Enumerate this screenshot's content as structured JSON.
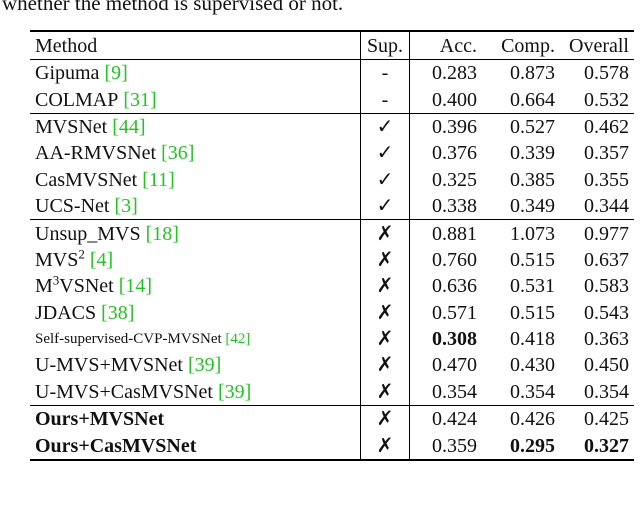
{
  "caption": "whether the method is supervised or not.",
  "table": {
    "header": {
      "method": "Method",
      "sup": "Sup.",
      "acc": "Acc.",
      "comp": "Comp.",
      "overall": "Overall"
    },
    "groups": [
      {
        "rows": [
          {
            "name": "Gipuma",
            "ref": "[9]",
            "sup": "-",
            "acc": "0.283",
            "comp": "0.873",
            "overall": "0.578"
          },
          {
            "name": "COLMAP",
            "ref": "[31]",
            "sup": "-",
            "acc": "0.400",
            "comp": "0.664",
            "overall": "0.532"
          }
        ]
      },
      {
        "rows": [
          {
            "name": "MVSNet",
            "ref": "[44]",
            "sup": "✓",
            "acc": "0.396",
            "comp": "0.527",
            "overall": "0.462"
          },
          {
            "name": "AA-RMVSNet",
            "ref": "[36]",
            "sup": "✓",
            "acc": "0.376",
            "comp": "0.339",
            "overall": "0.357"
          },
          {
            "name": "CasMVSNet",
            "ref": "[11]",
            "sup": "✓",
            "acc": "0.325",
            "comp": "0.385",
            "overall": "0.355"
          },
          {
            "name": "UCS-Net",
            "ref": "[3]",
            "sup": "✓",
            "acc": "0.338",
            "comp": "0.349",
            "overall": "0.344"
          }
        ]
      },
      {
        "rows": [
          {
            "name": "Unsup_MVS",
            "ref": "[18]",
            "sup": "✗",
            "acc": "0.881",
            "comp": "1.073",
            "overall": "0.977"
          },
          {
            "name": [
              "MVS",
              {
                "sup": "2"
              }
            ],
            "ref": "[4]",
            "sup": "✗",
            "acc": "0.760",
            "comp": "0.515",
            "overall": "0.637"
          },
          {
            "name": [
              "M",
              {
                "sup": "3"
              },
              "VSNet"
            ],
            "ref": "[14]",
            "sup": "✗",
            "acc": "0.636",
            "comp": "0.531",
            "overall": "0.583"
          },
          {
            "name": "JDACS",
            "ref": "[38]",
            "sup": "✗",
            "acc": "0.571",
            "comp": "0.515",
            "overall": "0.543"
          },
          {
            "name": "Self-supervised-CVP-MVSNet",
            "ref": "[42]",
            "small": true,
            "sup": "✗",
            "acc": "0.308",
            "comp": "0.418",
            "overall": "0.363",
            "bold": [
              "acc"
            ]
          },
          {
            "name": "U-MVS+MVSNet",
            "ref": "[39]",
            "sup": "✗",
            "acc": "0.470",
            "comp": "0.430",
            "overall": "0.450"
          },
          {
            "name": "U-MVS+CasMVSNet",
            "ref": "[39]",
            "sup": "✗",
            "acc": "0.354",
            "comp": "0.354",
            "overall": "0.354"
          }
        ]
      },
      {
        "rows": [
          {
            "name": "Ours+MVSNet",
            "sup": "✗",
            "acc": "0.424",
            "comp": "0.426",
            "overall": "0.425",
            "bold": [
              "name"
            ]
          },
          {
            "name": "Ours+CasMVSNet",
            "sup": "✗",
            "acc": "0.359",
            "comp": "0.295",
            "overall": "0.327",
            "bold": [
              "name",
              "comp",
              "overall"
            ]
          }
        ]
      }
    ]
  }
}
